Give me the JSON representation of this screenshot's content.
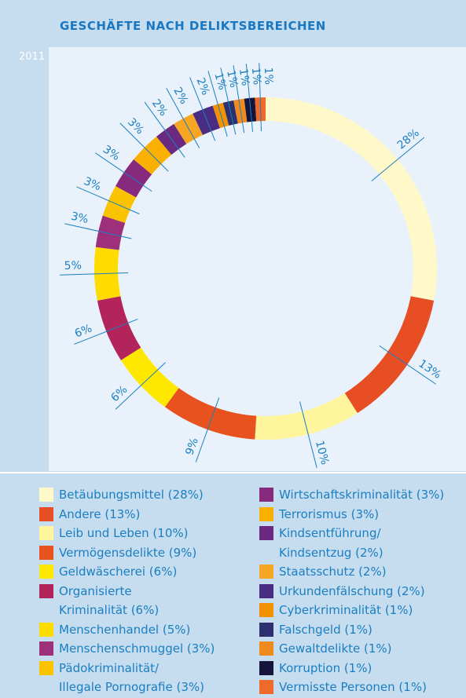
{
  "chart_data": {
    "type": "donut",
    "title": "GESCHÄFTE NACH DELIKTSBEREICHEN",
    "subtitle": "2011",
    "categories": [
      "Betäubungsmittel (28%)",
      "Andere (13%)",
      "Leib und Leben (10%)",
      "Vermögensdelikte (9%)",
      "Geldwäscherei (6%)",
      "Organisierte\nKriminalität (6%)",
      "Menschenhandel (5%)",
      "Menschenschmuggel (3%)",
      "Pädokriminalität/\nIllegale Pornografie (3%)",
      "Wirtschaftskriminalität (3%)",
      "Terrorismus (3%)",
      "Kindsentführung/\nKindsentzug (2%)",
      "Staatsschutz (2%)",
      "Urkundenfälschung (2%)",
      "Cyberkriminalität (1%)",
      "Falschgeld (1%)",
      "Gewaltdelikte (1%)",
      "Korruption (1%)",
      "Vermisste Personen (1%)"
    ],
    "values": [
      28,
      13,
      10,
      9,
      6,
      6,
      5,
      3,
      3,
      3,
      3,
      2,
      2,
      2,
      1,
      1,
      1,
      1,
      1
    ],
    "value_labels": [
      "28%",
      "13%",
      "10%",
      "9%",
      "6%",
      "6%",
      "5%",
      "3%",
      "3%",
      "3%",
      "3%",
      "2%",
      "2%",
      "2%",
      "1%",
      "1%",
      "1%",
      "1%",
      "1%"
    ],
    "colors": [
      "#fff8c9",
      "#e84e24",
      "#fff59c",
      "#e8521f",
      "#ffe800",
      "#b3245a",
      "#ffdc00",
      "#9e2f7b",
      "#fcc400",
      "#87297d",
      "#f9b000",
      "#6b2a80",
      "#f6a623",
      "#4a2d82",
      "#f39200",
      "#2e2f6e",
      "#ef8a1f",
      "#14143c",
      "#ee6a2a"
    ]
  }
}
